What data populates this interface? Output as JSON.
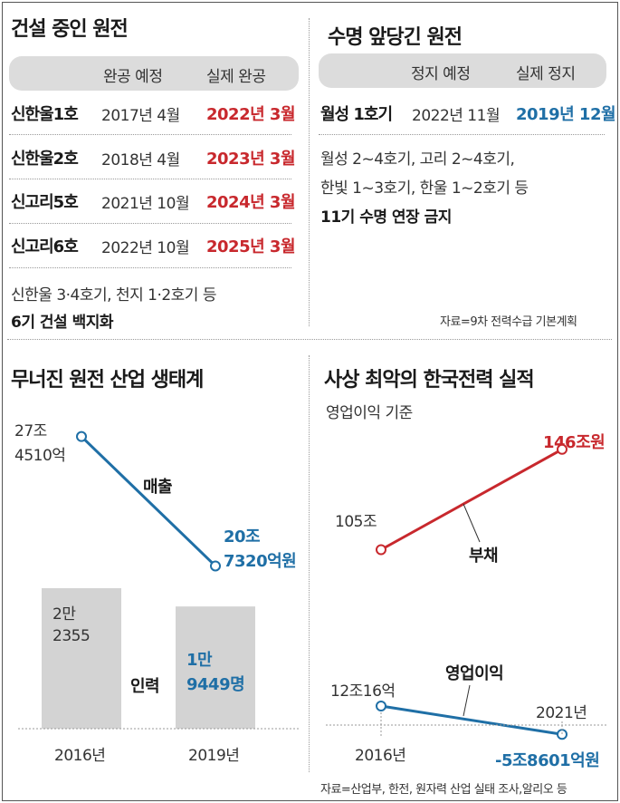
{
  "construction": {
    "title": "건설 중인 원전",
    "headers": [
      "완공 예정",
      "실제 완공"
    ],
    "rows": [
      {
        "name": "신한울1호",
        "planned": "2017년 4월",
        "actual": "2022년 3월"
      },
      {
        "name": "신한울2호",
        "planned": "2018년 4월",
        "actual": "2023년 3월"
      },
      {
        "name": "신고리5호",
        "planned": "2021년 10월",
        "actual": "2024년 3월"
      },
      {
        "name": "신고리6호",
        "planned": "2022년 10월",
        "actual": "2025년 3월"
      }
    ],
    "note": "신한울 3·4호기, 천지 1·2호기 등",
    "note_bold": "6기 건설 백지화"
  },
  "extension": {
    "title": "수명 앞당긴 원전",
    "headers": [
      "정지 예정",
      "실제 정지"
    ],
    "rows": [
      {
        "name": "월성 1호기",
        "planned": "2022년 11월",
        "actual": "2019년 12월"
      }
    ],
    "note_lines": [
      "월성 2~4호기, 고리 2~4호기,",
      "한빛 1~3호기, 한울 1~2호기 등"
    ],
    "note_bold": "11기 수명 연장 금지",
    "source": "자료=9차 전력수급 기본계획"
  },
  "chart_data": [
    {
      "type": "line",
      "title": "무너진 원전 산업 생태계",
      "x": [
        "2016년",
        "2019년"
      ],
      "series": [
        {
          "name": "매출",
          "values": [
            274510,
            207320
          ],
          "value_labels": [
            [
              "27조",
              "4510억"
            ],
            [
              "20조",
              "7320억원"
            ]
          ],
          "color": "#1f6fa6"
        }
      ]
    },
    {
      "type": "bar",
      "title": "무너진 원전 산업 생태계",
      "categories": [
        "2016년",
        "2019년"
      ],
      "series": [
        {
          "name": "인력",
          "values": [
            22355,
            19449
          ],
          "value_labels": [
            [
              "2만",
              "2355"
            ],
            [
              "1만",
              "9449명"
            ]
          ],
          "color": "#d3d3d3"
        }
      ]
    },
    {
      "type": "line",
      "title": "사상 최악의 한국전력 실적",
      "subtitle": "영업이익 기준",
      "x": [
        "2016년",
        "2021년"
      ],
      "series": [
        {
          "name": "부채",
          "values": [
            105,
            146
          ],
          "value_labels": [
            "105조",
            "146조원"
          ],
          "color": "#c8282d"
        },
        {
          "name": "영업이익",
          "values": [
            12.0016,
            -5.8601
          ],
          "value_labels": [
            "12조16억",
            "-5조8601억원"
          ],
          "color": "#1f6fa6"
        }
      ]
    }
  ],
  "footer_source": "자료=산업부, 한전, 원자력 산업 실태 조사,알리오 등"
}
